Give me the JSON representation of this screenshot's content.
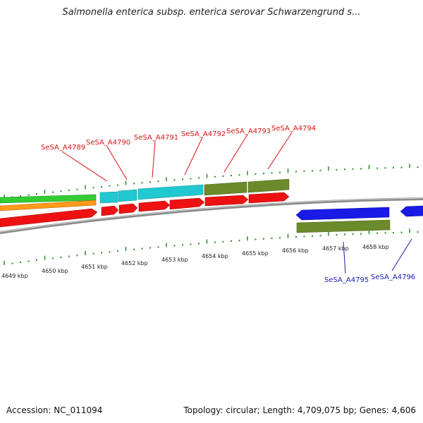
{
  "title": "Salmonella enterica subsp. enterica serovar Schwarzengrund s...",
  "footer": {
    "accession": "Accession: NC_011094",
    "summary": "Topology: circular; Length: 4,709,075 bp; Genes: 4,606"
  },
  "colors": {
    "backbone": "#8a8a8a",
    "tick": "#2a8a2a",
    "gene_red": "#ee1111",
    "gene_cyan": "#22c8cf",
    "gene_olive": "#6b8a2a",
    "gene_blue": "#1a1ae6",
    "gene_green": "#33cc33",
    "gene_orange": "#ff9a1a",
    "label_red": "#dd1111",
    "label_blue": "#1a1ab4"
  },
  "scale_labels": [
    "4649 kbp",
    "4650 kbp",
    "4651 kbp",
    "4652 kbp",
    "4653 kbp",
    "4654 kbp",
    "4655 kbp",
    "4656 kbp",
    "4657 kbp",
    "4658 kbp"
  ],
  "gene_labels_top": [
    "SeSA_A4789",
    "SeSA_A4790",
    "SeSA_A4791",
    "SeSA_A4792",
    "SeSA_A4793",
    "SeSA_A4794"
  ],
  "gene_labels_bottom": [
    "SeSA_A4795",
    "SeSA_A4796"
  ]
}
